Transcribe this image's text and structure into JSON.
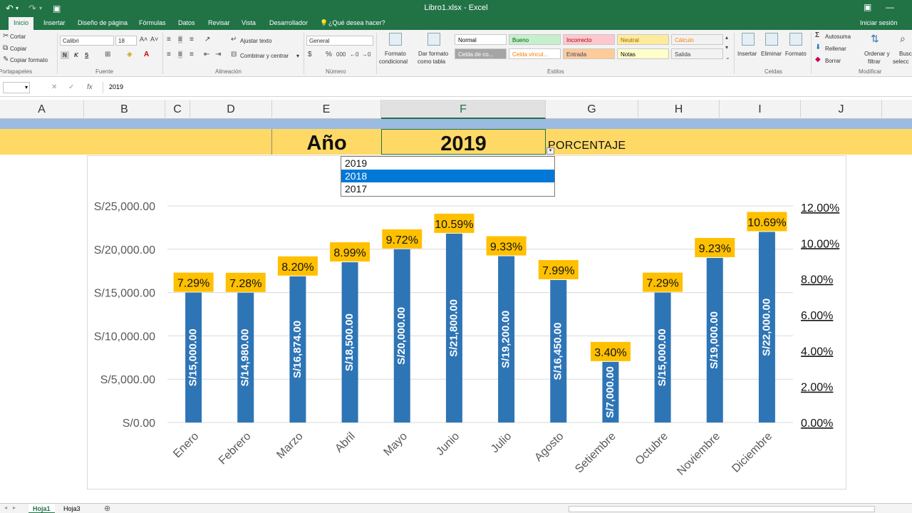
{
  "window": {
    "title": "Libro1.xlsx - Excel",
    "signin": "Iniciar sesión"
  },
  "quick_access": {
    "undo_icon": "undo-icon",
    "redo_icon": "redo-icon",
    "save_icon": "save-icon"
  },
  "tabs": [
    "Inicio",
    "Insertar",
    "Diseño de página",
    "Fórmulas",
    "Datos",
    "Revisar",
    "Vista",
    "Desarrollador"
  ],
  "tell_me": "¿Qué desea hacer?",
  "ribbon": {
    "clipboard": {
      "cut": "Cortar",
      "copy": "Copiar",
      "format_painter": "Copiar formato",
      "group": "Portapapeles"
    },
    "font": {
      "name": "Calibri",
      "size": "18",
      "bold": "N",
      "italic": "K",
      "underline": "S",
      "group": "Fuente"
    },
    "alignment": {
      "wrap": "Ajustar texto",
      "merge": "Combinar y centrar",
      "group": "Alineación"
    },
    "number": {
      "format": "General",
      "group": "Número"
    },
    "styles": {
      "conditional": [
        "Formato",
        "condicional"
      ],
      "as_table": [
        "Dar formato",
        "como tabla"
      ],
      "cells": [
        {
          "label": "Normal",
          "bg": "#ffffff",
          "fg": "#000000"
        },
        {
          "label": "Bueno",
          "bg": "#c6efce",
          "fg": "#006100"
        },
        {
          "label": "Incorrecto",
          "bg": "#ffc7ce",
          "fg": "#9c0006"
        },
        {
          "label": "Neutral",
          "bg": "#ffeb9c",
          "fg": "#9c6500"
        },
        {
          "label": "Cálculo",
          "bg": "#f2f2f2",
          "fg": "#fa7d00"
        },
        {
          "label": "Celda de co...",
          "bg": "#a5a5a5",
          "fg": "#ffffff"
        },
        {
          "label": "Celda vincul...",
          "bg": "#ffffff",
          "fg": "#fa7d00"
        },
        {
          "label": "Entrada",
          "bg": "#ffcc99",
          "fg": "#3f3f76"
        },
        {
          "label": "Notas",
          "bg": "#ffffcc",
          "fg": "#000000"
        },
        {
          "label": "Salida",
          "bg": "#f2f2f2",
          "fg": "#3f3f3f"
        }
      ],
      "group": "Estilos"
    },
    "cells": {
      "insert": "Insertar",
      "delete": "Eliminar",
      "format": "Formato",
      "group": "Celdas"
    },
    "editing": {
      "autosum": "Autosuma",
      "fill": "Rellenar",
      "clear": "Borrar",
      "sort": [
        "Ordenar y",
        "filtrar"
      ],
      "find": [
        "Busc",
        "selecc"
      ],
      "group": "Modificar"
    }
  },
  "formula_bar": {
    "name_box": "",
    "cancel_icon": "cancel-icon",
    "enter_icon": "check-icon",
    "fx": "fx",
    "content": "2019"
  },
  "columns": [
    "A",
    "B",
    "C",
    "D",
    "E",
    "F",
    "G",
    "H",
    "I",
    "J"
  ],
  "selected_column": "F",
  "sheet": {
    "year_label": "Año",
    "year_value": "2019",
    "percent_label": "PORCENTAJE"
  },
  "dropdown": {
    "options": [
      "2019",
      "2018",
      "2017"
    ],
    "highlighted": "2018"
  },
  "chart_data": {
    "type": "bar",
    "categories": [
      "Enero",
      "Febrero",
      "Marzo",
      "Abril",
      "Mayo",
      "Junio",
      "Julio",
      "Agosto",
      "Setiembre",
      "Octubre",
      "Noviembre",
      "Diciembre"
    ],
    "values": [
      15000,
      14980,
      16874,
      18500,
      20000,
      21800,
      19200,
      16450,
      7000,
      15000,
      19000,
      22000
    ],
    "value_labels": [
      "S/15,000.00",
      "S/14,980.00",
      "S/16,874.00",
      "S/18,500.00",
      "S/20,000.00",
      "S/21,800.00",
      "S/19,200.00",
      "S/16,450.00",
      "S/7,000.00",
      "S/15,000.00",
      "S/19,000.00",
      "S/22,000.00"
    ],
    "percentages": [
      "7.29%",
      "7.28%",
      "8.20%",
      "8.99%",
      "9.72%",
      "10.59%",
      "9.33%",
      "7.99%",
      "3.40%",
      "7.29%",
      "9.23%",
      "10.69%"
    ],
    "ylim": [
      0,
      25000
    ],
    "y_ticks": [
      "S/0.00",
      "S/5,000.00",
      "S/10,000.00",
      "S/15,000.00",
      "S/20,000.00",
      "S/25,000.00"
    ],
    "y2lim": [
      0,
      12
    ],
    "y2_ticks": [
      "0.00%",
      "2.00%",
      "4.00%",
      "6.00%",
      "8.00%",
      "10.00%",
      "12.00%"
    ],
    "bar_color": "#2e75b6",
    "label_bg": "#ffc000",
    "grid": true
  },
  "sheet_tabs": [
    "Hoja1",
    "Hoja3"
  ],
  "active_sheet": "Hoja1"
}
